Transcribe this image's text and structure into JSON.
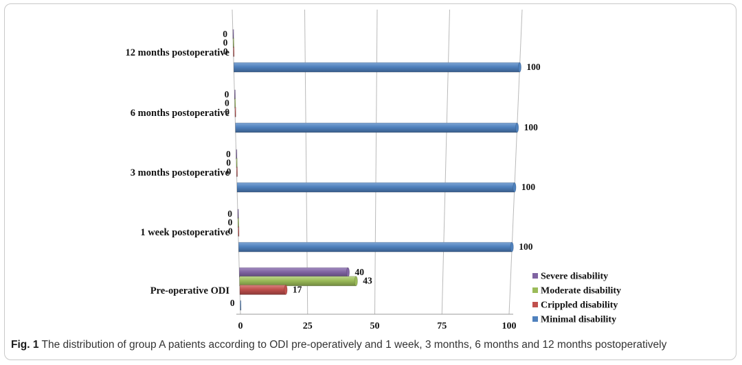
{
  "chart_data": {
    "type": "bar",
    "orientation": "horizontal",
    "categories": [
      "Pre-operative ODI",
      "1 week postoperative",
      "3 months postoperative",
      "6 months postoperative",
      "12 months postoperative"
    ],
    "series": [
      {
        "name": "Minimal disability",
        "color": "#4f81bd",
        "values": [
          0,
          100,
          100,
          100,
          100
        ]
      },
      {
        "name": "Crippled disability",
        "color": "#c0504d",
        "values": [
          17,
          0,
          0,
          0,
          0
        ]
      },
      {
        "name": "Moderate disability",
        "color": "#9bbb59",
        "values": [
          43,
          0,
          0,
          0,
          0
        ]
      },
      {
        "name": "Severe disability",
        "color": "#8064a2",
        "values": [
          40,
          0,
          0,
          0,
          0
        ]
      }
    ],
    "xlim": [
      0,
      100
    ],
    "xticks": [
      0,
      25,
      50,
      75,
      100
    ],
    "grid": true,
    "legend_position": "bottom-right",
    "legend_order": [
      "Severe disability",
      "Moderate disability",
      "Crippled disability",
      "Minimal disability"
    ],
    "data_labels": true,
    "style": "3d-perspective"
  },
  "caption": {
    "label": "Fig. 1",
    "text": " The distribution of group A patients according to ODI pre-operatively and 1 week, 3 months, 6 months and 12 months postoperatively"
  }
}
